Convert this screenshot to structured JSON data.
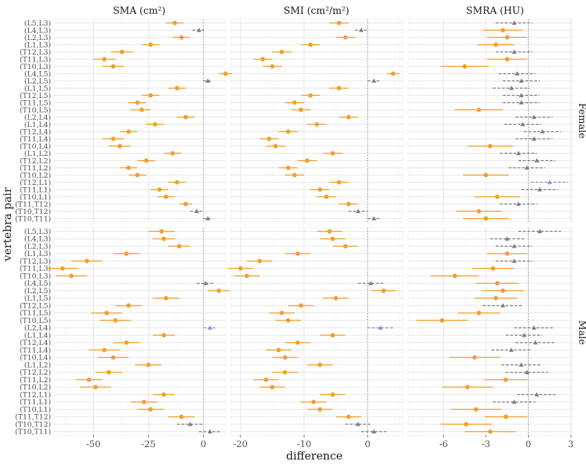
{
  "figure": {
    "xlabel": "difference",
    "ylabel": "vertebra pair",
    "panel_titles": [
      "SMA (cm²)",
      "SMI (cm²/m²)",
      "SMRA (HU)"
    ],
    "row_labels": [
      "Female",
      "Male"
    ],
    "colors": {
      "significant": "#f0a030",
      "nonsignificant": "#808080",
      "special": "#9090c8",
      "reference": "#a9a9a9"
    }
  },
  "chart_data": [
    {
      "type": "scatter",
      "subtype": "forest-plot",
      "metric": "SMA (cm²)",
      "x_ticks": [
        -50,
        -25,
        0
      ],
      "x_tick_labels": [
        "-50",
        "-25",
        "0"
      ],
      "xlim": [
        -68,
        10
      ],
      "reference_line": 0,
      "categories": [
        "(L5,L3)",
        "(L4,L3)",
        "(L2,L3)",
        "(L1,L3)",
        "(T12,L3)",
        "(T11,L3)",
        "(T10,L3)",
        "(L4,L5)",
        "(L2,L5)",
        "(L1,L5)",
        "(T12,L5)",
        "(T11,L5)",
        "(T10,L5)",
        "(L2,L4)",
        "(L1,L4)",
        "(T12,L4)",
        "(T11,L4)",
        "(T10,L4)",
        "(L1,L2)",
        "(T12,L2)",
        "(T11,L2)",
        "(T10,L2)",
        "(T12,L1)",
        "(T11,L1)",
        "(T10,L1)",
        "(T11,T12)",
        "(T10,T12)",
        "(T10,T11)"
      ],
      "series": [
        {
          "name": "Female",
          "est": [
            -13,
            -2,
            -10,
            -24,
            -37,
            -45,
            -41,
            10,
            2,
            -12,
            -24,
            -30,
            -28,
            -8,
            -22,
            -34,
            -41,
            -38,
            -14,
            -26,
            -34,
            -30,
            -12,
            -20,
            -17,
            -8,
            -3,
            2
          ],
          "lo": [
            -17,
            -5,
            -14,
            -28,
            -42,
            -50,
            -46,
            7,
            0,
            -16,
            -28,
            -34,
            -33,
            -12,
            -26,
            -38,
            -46,
            -43,
            -18,
            -30,
            -38,
            -34,
            -16,
            -24,
            -21,
            -11,
            -6,
            0
          ],
          "hi": [
            -9,
            1,
            -6,
            -20,
            -32,
            -40,
            -36,
            13,
            4,
            -8,
            -20,
            -26,
            -24,
            -4,
            -18,
            -30,
            -36,
            -33,
            -10,
            -22,
            -30,
            -26,
            -8,
            -16,
            -13,
            -5,
            0,
            4
          ],
          "sig": [
            "y",
            "n",
            "y",
            "y",
            "y",
            "y",
            "y",
            "y",
            "n",
            "y",
            "y",
            "y",
            "y",
            "y",
            "y",
            "y",
            "y",
            "y",
            "y",
            "y",
            "y",
            "y",
            "y",
            "y",
            "y",
            "y",
            "n",
            "n"
          ]
        },
        {
          "name": "Male",
          "est": [
            -19,
            -18,
            -11,
            -35,
            -53,
            -64,
            -60,
            1,
            7,
            -17,
            -34,
            -44,
            -40,
            3,
            -18,
            -35,
            -45,
            -41,
            -25,
            -43,
            -52,
            -49,
            -18,
            -27,
            -24,
            -10,
            -6,
            3
          ],
          "lo": [
            -25,
            -23,
            -16,
            -41,
            -60,
            -71,
            -67,
            -3,
            2,
            -23,
            -40,
            -51,
            -47,
            0,
            -23,
            -41,
            -52,
            -48,
            -31,
            -49,
            -58,
            -56,
            -23,
            -33,
            -30,
            -16,
            -12,
            -2
          ],
          "hi": [
            -13,
            -13,
            -6,
            -29,
            -46,
            -57,
            -53,
            5,
            12,
            -11,
            -28,
            -37,
            -33,
            6,
            -13,
            -29,
            -38,
            -34,
            -19,
            -37,
            -46,
            -42,
            -13,
            -21,
            -18,
            -4,
            0,
            8
          ],
          "sig": [
            "y",
            "y",
            "y",
            "y",
            "y",
            "y",
            "y",
            "n",
            "y",
            "y",
            "y",
            "y",
            "y",
            "s",
            "y",
            "y",
            "y",
            "y",
            "y",
            "y",
            "y",
            "y",
            "y",
            "y",
            "y",
            "y",
            "n",
            "n"
          ]
        }
      ]
    },
    {
      "type": "scatter",
      "subtype": "forest-plot",
      "metric": "SMI (cm²/m²)",
      "x_ticks": [
        -20,
        -10,
        0
      ],
      "x_tick_labels": [
        "-20",
        "-10",
        "0"
      ],
      "xlim": [
        -21.5,
        5.5
      ],
      "reference_line": 0,
      "categories": [
        "(L5,L3)",
        "(L4,L3)",
        "(L2,L3)",
        "(L1,L3)",
        "(T12,L3)",
        "(T11,L3)",
        "(T10,L3)",
        "(L4,L5)",
        "(L2,L5)",
        "(L1,L5)",
        "(T12,L5)",
        "(T11,L5)",
        "(T10,L5)",
        "(L2,L4)",
        "(L1,L4)",
        "(T12,L4)",
        "(T11,L4)",
        "(T10,L4)",
        "(L1,L2)",
        "(T12,L2)",
        "(T11,L2)",
        "(T10,L2)",
        "(T12,L1)",
        "(T11,L1)",
        "(T10,L1)",
        "(T11,T12)",
        "(T10,T12)",
        "(T10,T11)"
      ],
      "series": [
        {
          "name": "Female",
          "est": [
            -4.5,
            -1,
            -3.5,
            -9,
            -13.5,
            -16.5,
            -15,
            4,
            1,
            -4.5,
            -9,
            -11.5,
            -10.5,
            -3,
            -8,
            -12.5,
            -15.5,
            -14.5,
            -5.5,
            -9.5,
            -12.5,
            -11.5,
            -4.5,
            -7.5,
            -6.5,
            -3,
            -1.5,
            1
          ],
          "lo": [
            -6,
            -2,
            -5,
            -10.5,
            -15,
            -18,
            -16.5,
            3,
            0,
            -6,
            -10.5,
            -13,
            -12,
            -4.5,
            -9.5,
            -14,
            -17,
            -16,
            -7,
            -11,
            -14,
            -13,
            -6,
            -9,
            -8,
            -4.5,
            -3,
            0
          ],
          "hi": [
            -3,
            0,
            -2,
            -7.5,
            -12,
            -15,
            -13.5,
            5,
            2,
            -3,
            -7.5,
            -10,
            -9,
            -1.5,
            -6.5,
            -11,
            -14,
            -13,
            -4,
            -8,
            -11,
            -10,
            -3,
            -6,
            -5,
            -1.5,
            0,
            2
          ],
          "sig": [
            "y",
            "n",
            "y",
            "y",
            "y",
            "y",
            "y",
            "y",
            "n",
            "y",
            "y",
            "y",
            "y",
            "y",
            "y",
            "y",
            "y",
            "y",
            "y",
            "y",
            "y",
            "y",
            "y",
            "y",
            "y",
            "y",
            "n",
            "n"
          ]
        },
        {
          "name": "Male",
          "est": [
            -6,
            -5.5,
            -3.5,
            -11,
            -17,
            -20,
            -19,
            0.5,
            2.5,
            -5,
            -10.5,
            -13.5,
            -12.5,
            2,
            -5.5,
            -11,
            -14,
            -13,
            -7.5,
            -13,
            -16,
            -15,
            -5.5,
            -8.5,
            -7.5,
            -3,
            -1.5,
            1
          ],
          "lo": [
            -8,
            -7.5,
            -5.5,
            -13,
            -19,
            -22,
            -21,
            -1.5,
            0.5,
            -7,
            -12.5,
            -15.5,
            -14.5,
            0,
            -7.5,
            -13,
            -16,
            -15,
            -9.5,
            -15,
            -18,
            -17,
            -7.5,
            -10.5,
            -9.5,
            -5,
            -3.5,
            -1
          ],
          "hi": [
            -4,
            -3.5,
            -1.5,
            -9,
            -15,
            -18,
            -17,
            2.5,
            4.5,
            -3,
            -8.5,
            -11.5,
            -10.5,
            4,
            -3.5,
            -9,
            -12,
            -11,
            -5.5,
            -11,
            -14,
            -13,
            -3.5,
            -6.5,
            -5.5,
            -1,
            0.5,
            3
          ],
          "sig": [
            "y",
            "y",
            "y",
            "y",
            "y",
            "y",
            "y",
            "n",
            "y",
            "y",
            "y",
            "y",
            "y",
            "s",
            "y",
            "y",
            "y",
            "y",
            "y",
            "y",
            "y",
            "y",
            "y",
            "y",
            "y",
            "y",
            "n",
            "n"
          ]
        }
      ]
    },
    {
      "type": "scatter",
      "subtype": "forest-plot",
      "metric": "SMRA (HU)",
      "x_ticks": [
        -6,
        -3,
        0,
        3
      ],
      "x_tick_labels": [
        "-6",
        "-3",
        "0",
        "3"
      ],
      "xlim": [
        -8.5,
        3.1
      ],
      "reference_line": 0,
      "categories": [
        "(L5,L3)",
        "(L4,L3)",
        "(L2,L3)",
        "(L1,L3)",
        "(T12,L3)",
        "(T11,L3)",
        "(T10,L3)",
        "(L4,L5)",
        "(L2,L5)",
        "(L1,L5)",
        "(T12,L5)",
        "(T11,L5)",
        "(T10,L5)",
        "(L2,L4)",
        "(L1,L4)",
        "(T12,L4)",
        "(T11,L4)",
        "(T10,L4)",
        "(L1,L2)",
        "(T12,L2)",
        "(T11,L2)",
        "(T10,L2)",
        "(T12,L1)",
        "(T11,L1)",
        "(T10,L1)",
        "(T11,T12)",
        "(T10,T12)",
        "(T10,T11)"
      ],
      "series": [
        {
          "name": "Female",
          "est": [
            -1,
            -1.8,
            -1.5,
            -2.3,
            -1,
            -1.5,
            -4.5,
            -0.8,
            -0.5,
            -1.2,
            -0.5,
            -0.5,
            -3.5,
            0.4,
            -0.4,
            1,
            0.4,
            -2.7,
            -0.7,
            0.6,
            -0.1,
            -3,
            1.5,
            0.8,
            -2.2,
            -0.7,
            -3.5,
            -3
          ],
          "lo": [
            -2.3,
            -3.2,
            -2.9,
            -3.6,
            -2.3,
            -2.9,
            -6.2,
            -2.1,
            -1.8,
            -2.5,
            -1.8,
            -1.8,
            -5.2,
            -0.9,
            -1.7,
            -0.3,
            -0.9,
            -4.3,
            -2,
            -0.7,
            -1.4,
            -4.6,
            0.2,
            -0.5,
            -3.8,
            -2,
            -5.1,
            -4.6
          ],
          "hi": [
            0.3,
            -0.4,
            -0.1,
            -1,
            0.3,
            -0.1,
            -2.8,
            0.5,
            0.8,
            0.1,
            0.8,
            0.8,
            -1.8,
            1.7,
            0.9,
            2.3,
            1.7,
            -1.1,
            0.6,
            1.9,
            1.2,
            -1.4,
            2.8,
            2.1,
            -0.6,
            0.6,
            -1.9,
            -1.4
          ],
          "sig": [
            "n",
            "y",
            "y",
            "y",
            "n",
            "y",
            "y",
            "n",
            "n",
            "n",
            "n",
            "n",
            "y",
            "n",
            "n",
            "n",
            "n",
            "y",
            "n",
            "n",
            "n",
            "y",
            "s",
            "n",
            "y",
            "n",
            "y",
            "y"
          ]
        },
        {
          "name": "Male",
          "est": [
            0.8,
            -1.5,
            -1,
            -1.5,
            -1,
            -2.5,
            -5.2,
            -2.2,
            -1.8,
            -2.3,
            -1.8,
            -3.5,
            -6.1,
            0.4,
            -0.3,
            0.5,
            -1.2,
            -3.8,
            -0.5,
            -0.1,
            -1.6,
            -4.3,
            0.6,
            -1,
            -3.7,
            -1.6,
            -4.4,
            -2.7
          ],
          "lo": [
            -0.7,
            -2.7,
            -2.3,
            -2.9,
            -2.3,
            -4,
            -6.9,
            -3.7,
            -3.3,
            -3.8,
            -3.2,
            -5,
            -7.9,
            -1,
            -1.6,
            -0.9,
            -2.6,
            -5.6,
            -1.9,
            -1.6,
            -3.1,
            -6.1,
            -0.8,
            -2.5,
            -5.5,
            -3.1,
            -6.2,
            -4.5
          ],
          "hi": [
            2.3,
            -0.3,
            0.3,
            -0.1,
            0.3,
            -1,
            -3.5,
            -0.7,
            -0.3,
            -0.8,
            -0.4,
            -2,
            -4.3,
            1.8,
            1,
            1.9,
            0.2,
            -2,
            0.9,
            1.4,
            -0.1,
            -2.5,
            2,
            0.5,
            -1.9,
            -0.1,
            -2.6,
            -0.9
          ],
          "sig": [
            "n",
            "n",
            "n",
            "y",
            "n",
            "y",
            "y",
            "y",
            "y",
            "y",
            "n",
            "y",
            "y",
            "n",
            "n",
            "n",
            "n",
            "y",
            "n",
            "n",
            "y",
            "y",
            "n",
            "n",
            "y",
            "y",
            "y",
            "y"
          ]
        }
      ]
    }
  ]
}
